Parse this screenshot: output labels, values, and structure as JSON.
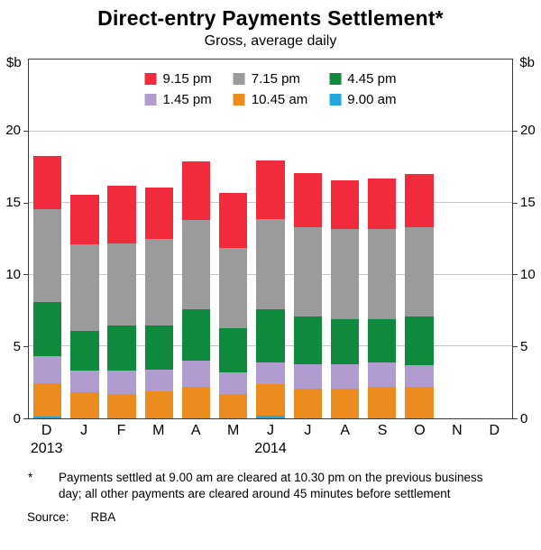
{
  "title": "Direct-entry Payments Settlement*",
  "subtitle": "Gross, average daily",
  "axis_unit_left": "$b",
  "axis_unit_right": "$b",
  "footnote": {
    "marker": "*",
    "text": "Payments settled at 9.00 am are cleared at 10.30 pm on the previous business day; all other payments are cleared around 45 minutes before settlement"
  },
  "source": {
    "label": "Source:",
    "value": "RBA"
  },
  "chart_data": {
    "type": "bar",
    "stacked": true,
    "title": "Direct-entry Payments Settlement",
    "subtitle": "Gross, average daily",
    "ylabel": "$b",
    "ylim": [
      0,
      25
    ],
    "y_ticks": [
      0,
      5,
      10,
      15,
      20
    ],
    "grid": true,
    "legend_position": "top-center-inside",
    "categories": [
      "D",
      "J",
      "F",
      "M",
      "A",
      "M",
      "J",
      "J",
      "A",
      "S",
      "O",
      "N",
      "D"
    ],
    "year_labels": [
      {
        "label": "2013",
        "index": 0
      },
      {
        "label": "2014",
        "index": 6
      }
    ],
    "series": [
      {
        "name": "9.00 am",
        "color": "#22A8DD",
        "values": [
          0.15,
          0,
          0,
          0,
          0,
          0,
          0.2,
          0,
          0,
          0,
          0,
          0,
          0
        ]
      },
      {
        "name": "10.45 am",
        "color": "#EC8C1E",
        "values": [
          2.3,
          1.8,
          1.7,
          1.9,
          2.2,
          1.7,
          2.2,
          2.1,
          2.1,
          2.2,
          2.2,
          0,
          0
        ]
      },
      {
        "name": "1.45 pm",
        "color": "#B19CD0",
        "values": [
          1.9,
          1.5,
          1.6,
          1.5,
          1.8,
          1.5,
          1.5,
          1.7,
          1.7,
          1.7,
          1.5,
          0,
          0
        ]
      },
      {
        "name": "4.45 pm",
        "color": "#0F8A3D",
        "values": [
          3.75,
          2.8,
          3.2,
          3.1,
          3.6,
          3.1,
          3.7,
          3.3,
          3.1,
          3.0,
          3.4,
          0,
          0
        ]
      },
      {
        "name": "7.15 pm",
        "color": "#9B9B9B",
        "values": [
          6.5,
          6.0,
          5.7,
          6.0,
          6.2,
          5.6,
          6.3,
          6.2,
          6.3,
          6.3,
          6.2,
          0,
          0
        ]
      },
      {
        "name": "9.15 pm",
        "color": "#F12B3C",
        "values": [
          3.7,
          3.5,
          4.0,
          3.6,
          4.1,
          3.8,
          4.1,
          3.8,
          3.4,
          3.5,
          3.7,
          0,
          0
        ]
      }
    ],
    "legend_order": [
      "9.15 pm",
      "7.15 pm",
      "4.45 pm",
      "1.45 pm",
      "10.45 am",
      "9.00 am"
    ]
  }
}
